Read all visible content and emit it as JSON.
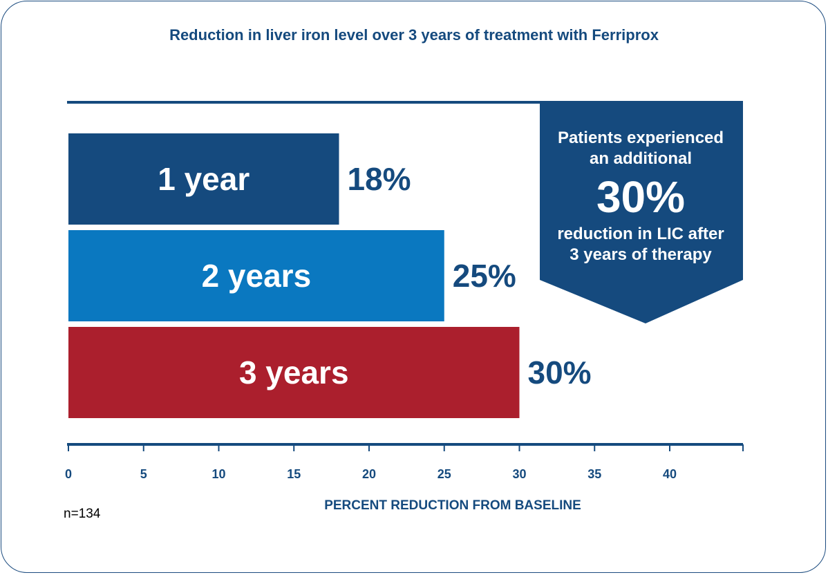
{
  "colors": {
    "axis": "#154a7e",
    "text": "#154a7e",
    "callout_bg": "#154a7e",
    "bar_label": "#ffffff"
  },
  "chart_data": {
    "type": "bar",
    "orientation": "horizontal",
    "title": "Reduction in liver iron level over 3 years of treatment with Ferriprox",
    "xlabel": "PERCENT REDUCTION FROM BASELINE",
    "ylabel": "",
    "xlim": [
      0,
      45
    ],
    "xticks": [
      "0",
      "5",
      "10",
      "15",
      "20",
      "25",
      "30",
      "35",
      "40"
    ],
    "categories": [
      "1 year",
      "2 years",
      "3 years"
    ],
    "values": [
      18,
      25,
      30
    ],
    "value_labels": [
      "18%",
      "25%",
      "30%"
    ],
    "bar_colors": [
      "#154a7e",
      "#0a78c0",
      "#ab1f2d"
    ],
    "callout": {
      "lines_top": [
        "Patients experienced",
        "an additional"
      ],
      "highlight": "30%",
      "lines_bottom": [
        "reduction in LIC after",
        "3 years of therapy"
      ]
    },
    "footnote": "n=134"
  }
}
